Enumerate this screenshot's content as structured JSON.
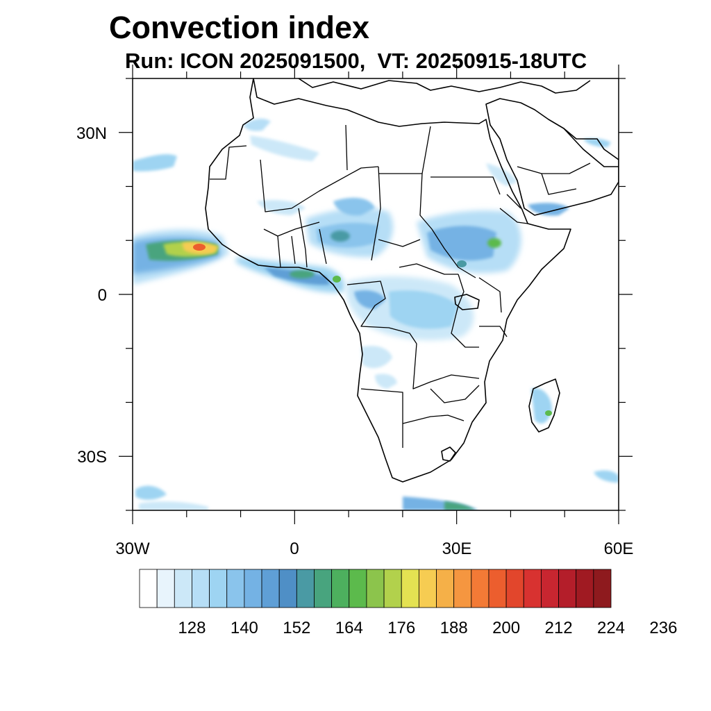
{
  "title": "Convection index",
  "subtitle": "Run: ICON 2025091500,  VT: 20250915-18UTC",
  "map": {
    "region": "Africa and surrounding oceans",
    "projection": "cylindrical equidistant",
    "lon_range": [
      -30,
      60
    ],
    "lat_range": [
      -40,
      40
    ],
    "lat_ticks": [
      {
        "label": "30N",
        "value": 30
      },
      {
        "label": "0",
        "value": 0
      },
      {
        "label": "30S",
        "value": -30
      }
    ],
    "lon_ticks": [
      {
        "label": "30W",
        "value": -30
      },
      {
        "label": "0",
        "value": 0
      },
      {
        "label": "30E",
        "value": 30
      },
      {
        "label": "60E",
        "value": 60
      }
    ]
  },
  "colorbar": {
    "labels": [
      "128",
      "140",
      "152",
      "164",
      "176",
      "188",
      "200",
      "212",
      "224",
      "236"
    ],
    "colors": [
      "#ffffff",
      "#e8f4fc",
      "#cce8f8",
      "#b6def6",
      "#9ed4f2",
      "#8ac4ec",
      "#74b2e4",
      "#5f9fd6",
      "#4f8fc6",
      "#4a9aa4",
      "#48a47e",
      "#4db05e",
      "#5cba4c",
      "#8cc44c",
      "#b2d14c",
      "#e4e252",
      "#f6cc52",
      "#f5b048",
      "#f59640",
      "#f37a36",
      "#ec5e2e",
      "#e2462c",
      "#d83230",
      "#c82630",
      "#b41e2a",
      "#a01a22",
      "#8e1a1e"
    ]
  },
  "field": {
    "name": "Convection index",
    "areas": [
      {
        "name": "atlantic-itcz-band",
        "level": "high"
      },
      {
        "name": "gulf-of-guinea-coast",
        "level": "moderate"
      },
      {
        "name": "sahel-band",
        "level": "moderate"
      },
      {
        "name": "ethiopian-highlands",
        "level": "moderate"
      },
      {
        "name": "congo-basin",
        "level": "low"
      },
      {
        "name": "madagascar",
        "level": "low"
      },
      {
        "name": "southern-ocean-bands",
        "level": "low"
      }
    ]
  }
}
